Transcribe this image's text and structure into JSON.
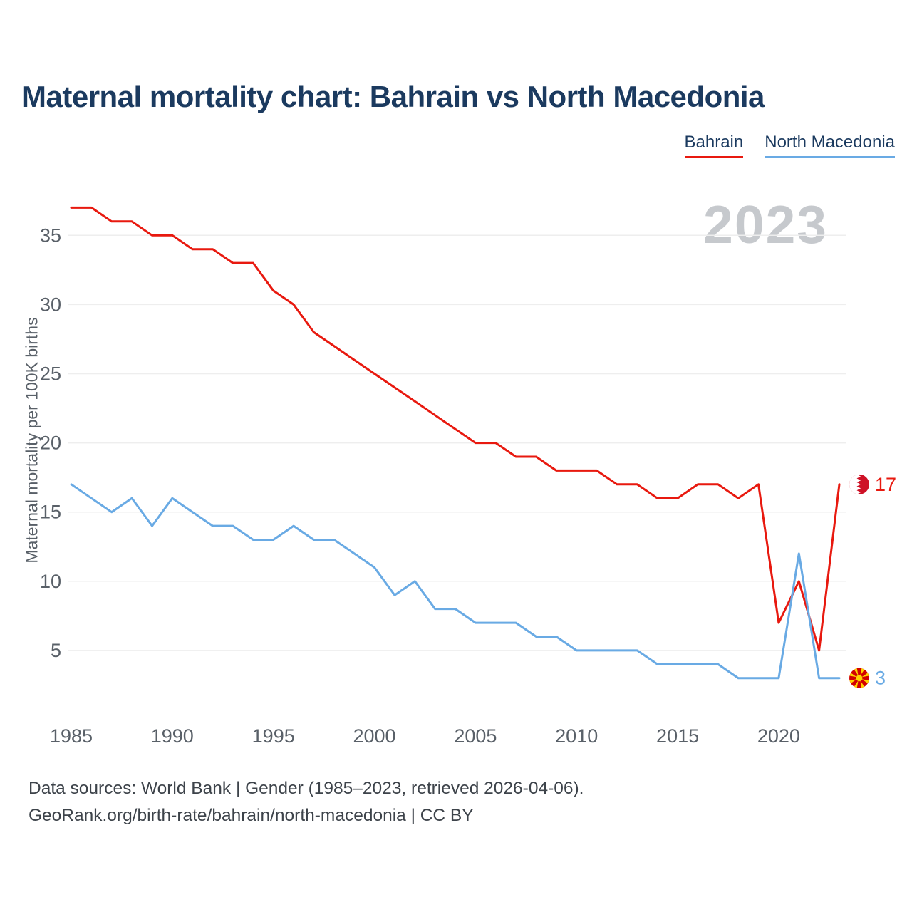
{
  "page": {
    "title": "Maternal mortality chart: Bahrain vs North Macedonia",
    "watermark": "2023",
    "footer_line1": "Data sources: World Bank | Gender (1985–2023, retrieved 2026-04-06).",
    "footer_line2": "GeoRank.org/birth-rate/bahrain/north-macedonia | CC BY"
  },
  "legend": [
    {
      "label": "Bahrain",
      "color": "#e8190f"
    },
    {
      "label": "North Macedonia",
      "color": "#69aae4"
    }
  ],
  "chart_data": {
    "type": "line",
    "title": "Maternal mortality chart: Bahrain vs North Macedonia",
    "xlabel": "",
    "ylabel": "Maternal mortality per 100K births",
    "x": [
      1985,
      1986,
      1987,
      1988,
      1989,
      1990,
      1991,
      1992,
      1993,
      1994,
      1995,
      1996,
      1997,
      1998,
      1999,
      2000,
      2001,
      2002,
      2003,
      2004,
      2005,
      2006,
      2007,
      2008,
      2009,
      2010,
      2011,
      2012,
      2013,
      2014,
      2015,
      2016,
      2017,
      2018,
      2019,
      2020,
      2021,
      2022,
      2023
    ],
    "series": [
      {
        "name": "Bahrain",
        "color": "#e8190f",
        "flag": "bahrain",
        "end_label": "17",
        "values": [
          37,
          37,
          36,
          36,
          35,
          35,
          34,
          34,
          33,
          33,
          31,
          30,
          28,
          27,
          26,
          25,
          24,
          23,
          22,
          21,
          20,
          20,
          19,
          19,
          18,
          18,
          18,
          17,
          17,
          16,
          16,
          17,
          17,
          16,
          17,
          7,
          10,
          5,
          17
        ]
      },
      {
        "name": "North Macedonia",
        "color": "#69aae4",
        "flag": "north-macedonia",
        "end_label": "3",
        "values": [
          17,
          16,
          15,
          16,
          14,
          16,
          15,
          14,
          14,
          13,
          13,
          14,
          13,
          13,
          12,
          11,
          9,
          10,
          8,
          8,
          7,
          7,
          7,
          6,
          6,
          5,
          5,
          5,
          5,
          4,
          4,
          4,
          4,
          3,
          3,
          3,
          12,
          3,
          3
        ]
      }
    ],
    "yticks": [
      5,
      10,
      15,
      20,
      25,
      30,
      35
    ],
    "xticks": [
      1985,
      1990,
      1995,
      2000,
      2005,
      2010,
      2015,
      2020
    ],
    "ylim": [
      0,
      38
    ],
    "grid": true,
    "legend_position": "top-right"
  }
}
